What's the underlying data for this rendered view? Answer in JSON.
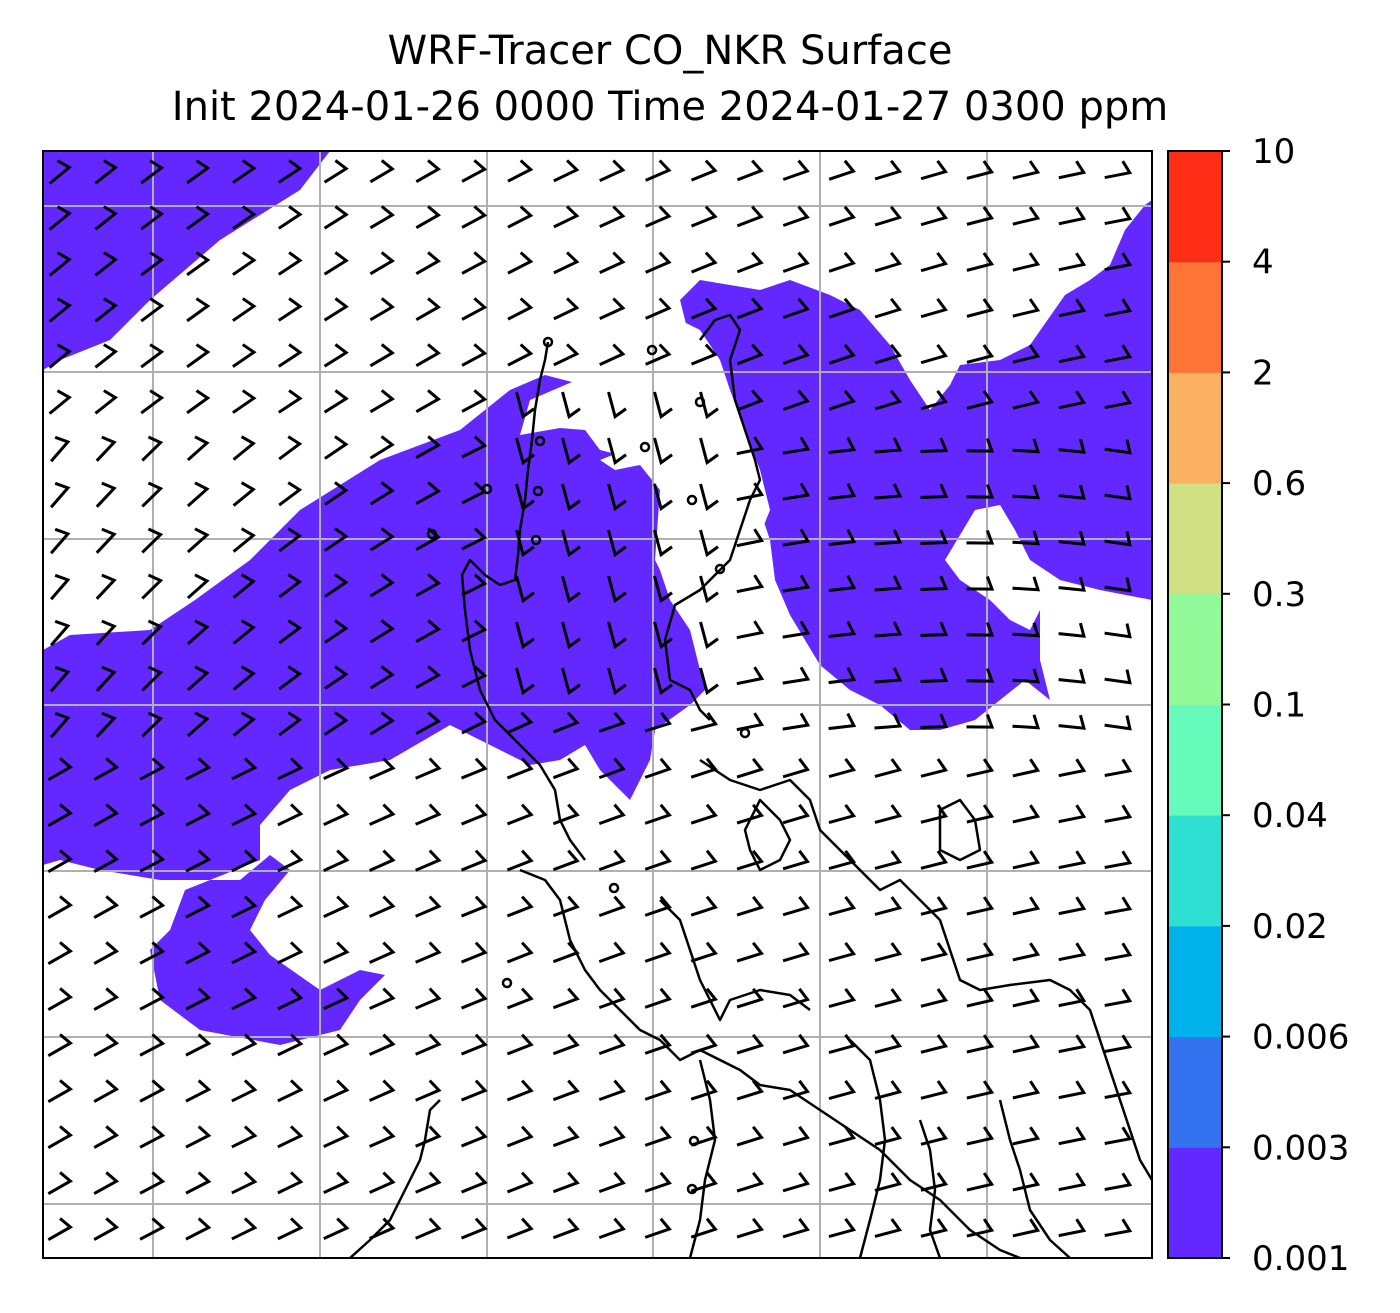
{
  "title": {
    "line1": "WRF-Tracer CO_NKR Surface",
    "line2": "Init 2024-01-26 0000 Time 2024-01-27 0300 ppm"
  },
  "colorbar": {
    "levels": [
      "0.001",
      "0.003",
      "0.006",
      "0.02",
      "0.04",
      "0.1",
      "0.3",
      "0.6",
      "2",
      "4",
      "10"
    ],
    "colors": [
      "#6328ff",
      "#3572f0",
      "#00b2ea",
      "#2fe0d2",
      "#66fbbb",
      "#92f999",
      "#d1e083",
      "#fbb162",
      "#fe7437",
      "#ff2c16"
    ]
  },
  "map": {
    "plume_fill_color": "#6328ff",
    "gridline_color": "#b0b0b0",
    "coastline_color": "#000000",
    "wind_barbs": "black wind barbs over whole domain"
  }
}
